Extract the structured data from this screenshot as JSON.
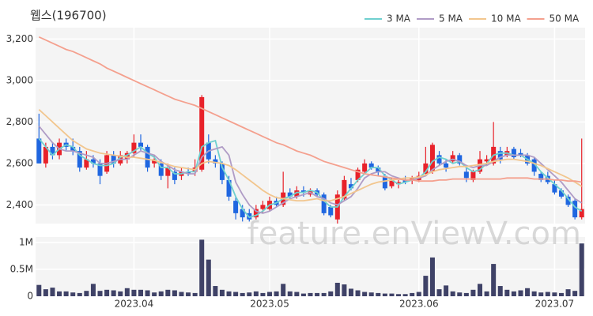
{
  "chart_data": {
    "type": "candlestick",
    "title": "웹스(196700)",
    "watermark": "feature.enViewV.com",
    "legend": "top-right",
    "grid": true,
    "up_color": "#e8222a",
    "down_color": "#1f66e0",
    "xlim": [
      -0.5,
      80.5
    ],
    "xticks": [
      {
        "value": 14,
        "label": "2023.04"
      },
      {
        "value": 34,
        "label": "2023.05"
      },
      {
        "value": 56,
        "label": "2023.06"
      },
      {
        "value": 76,
        "label": "2023.07"
      }
    ],
    "ylim": [
      2310,
      3255
    ],
    "yticks": [
      {
        "value": 2400,
        "label": "2,400"
      },
      {
        "value": 2600,
        "label": "2,600"
      },
      {
        "value": 2800,
        "label": "2,800"
      },
      {
        "value": 3000,
        "label": "3,000"
      },
      {
        "value": 3200,
        "label": "3,200"
      }
    ],
    "ohlc": [
      [
        2720,
        2840,
        2600,
        2600
      ],
      [
        2600,
        2700,
        2580,
        2680
      ],
      [
        2680,
        2700,
        2620,
        2640
      ],
      [
        2640,
        2720,
        2620,
        2700
      ],
      [
        2700,
        2720,
        2660,
        2680
      ],
      [
        2680,
        2720,
        2640,
        2660
      ],
      [
        2660,
        2680,
        2560,
        2580
      ],
      [
        2580,
        2660,
        2570,
        2620
      ],
      [
        2620,
        2640,
        2580,
        2600
      ],
      [
        2600,
        2620,
        2500,
        2540
      ],
      [
        2560,
        2660,
        2550,
        2640
      ],
      [
        2640,
        2660,
        2580,
        2600
      ],
      [
        2600,
        2660,
        2590,
        2640
      ],
      [
        2620,
        2660,
        2600,
        2650
      ],
      [
        2650,
        2740,
        2630,
        2700
      ],
      [
        2700,
        2740,
        2660,
        2680
      ],
      [
        2680,
        2690,
        2560,
        2580
      ],
      [
        2600,
        2640,
        2580,
        2620
      ],
      [
        2600,
        2620,
        2520,
        2540
      ],
      [
        2540,
        2600,
        2480,
        2580
      ],
      [
        2560,
        2580,
        2500,
        2520
      ],
      [
        2540,
        2580,
        2520,
        2560
      ],
      [
        2560,
        2580,
        2540,
        2550
      ],
      [
        2560,
        2620,
        2540,
        2580
      ],
      [
        2570,
        2930,
        2560,
        2920
      ],
      [
        2700,
        2740,
        2600,
        2620
      ],
      [
        2620,
        2640,
        2580,
        2600
      ],
      [
        2600,
        2610,
        2500,
        2520
      ],
      [
        2520,
        2540,
        2420,
        2440
      ],
      [
        2420,
        2440,
        2330,
        2360
      ],
      [
        2380,
        2400,
        2320,
        2340
      ],
      [
        2360,
        2380,
        2320,
        2330
      ],
      [
        2340,
        2400,
        2330,
        2380
      ],
      [
        2380,
        2420,
        2360,
        2400
      ],
      [
        2380,
        2440,
        2370,
        2420
      ],
      [
        2420,
        2440,
        2390,
        2400
      ],
      [
        2400,
        2560,
        2390,
        2460
      ],
      [
        2460,
        2480,
        2430,
        2440
      ],
      [
        2440,
        2490,
        2430,
        2470
      ],
      [
        2470,
        2490,
        2440,
        2460
      ],
      [
        2450,
        2480,
        2440,
        2470
      ],
      [
        2470,
        2480,
        2440,
        2450
      ],
      [
        2450,
        2460,
        2350,
        2360
      ],
      [
        2390,
        2400,
        2340,
        2350
      ],
      [
        2330,
        2470,
        2310,
        2450
      ],
      [
        2430,
        2540,
        2420,
        2520
      ],
      [
        2500,
        2530,
        2470,
        2480
      ],
      [
        2520,
        2580,
        2510,
        2570
      ],
      [
        2560,
        2620,
        2550,
        2600
      ],
      [
        2600,
        2610,
        2570,
        2580
      ],
      [
        2580,
        2590,
        2540,
        2560
      ],
      [
        2540,
        2550,
        2470,
        2480
      ],
      [
        2490,
        2530,
        2480,
        2520
      ],
      [
        2500,
        2520,
        2480,
        2510
      ],
      [
        2520,
        2540,
        2500,
        2510
      ],
      [
        2520,
        2540,
        2500,
        2530
      ],
      [
        2520,
        2560,
        2510,
        2540
      ],
      [
        2550,
        2680,
        2540,
        2600
      ],
      [
        2560,
        2700,
        2550,
        2690
      ],
      [
        2640,
        2660,
        2590,
        2600
      ],
      [
        2600,
        2620,
        2560,
        2580
      ],
      [
        2610,
        2660,
        2600,
        2640
      ],
      [
        2640,
        2650,
        2590,
        2600
      ],
      [
        2560,
        2580,
        2510,
        2530
      ],
      [
        2520,
        2570,
        2510,
        2560
      ],
      [
        2560,
        2660,
        2550,
        2620
      ],
      [
        2610,
        2640,
        2590,
        2620
      ],
      [
        2600,
        2800,
        2590,
        2680
      ],
      [
        2660,
        2680,
        2600,
        2620
      ],
      [
        2640,
        2680,
        2630,
        2660
      ],
      [
        2670,
        2680,
        2620,
        2630
      ],
      [
        2650,
        2670,
        2630,
        2640
      ],
      [
        2640,
        2650,
        2590,
        2600
      ],
      [
        2620,
        2630,
        2540,
        2560
      ],
      [
        2550,
        2560,
        2510,
        2520
      ],
      [
        2540,
        2560,
        2500,
        2510
      ],
      [
        2500,
        2520,
        2450,
        2460
      ],
      [
        2470,
        2480,
        2430,
        2440
      ],
      [
        2440,
        2450,
        2390,
        2400
      ],
      [
        2420,
        2430,
        2330,
        2340
      ],
      [
        2340,
        2720,
        2330,
        2380
      ]
    ],
    "series": [
      {
        "name": "3 MA",
        "color": "#6fd0cf",
        "values": [
          2720,
          2680,
          2640,
          2670,
          2690,
          2680,
          2640,
          2620,
          2600,
          2590,
          2590,
          2600,
          2630,
          2640,
          2660,
          2680,
          2650,
          2630,
          2580,
          2580,
          2550,
          2550,
          2560,
          2560,
          2680,
          2700,
          2710,
          2580,
          2520,
          2440,
          2380,
          2340,
          2350,
          2370,
          2400,
          2410,
          2430,
          2440,
          2460,
          2460,
          2470,
          2460,
          2420,
          2390,
          2390,
          2440,
          2480,
          2520,
          2550,
          2580,
          2580,
          2540,
          2520,
          2500,
          2510,
          2520,
          2530,
          2560,
          2610,
          2630,
          2620,
          2600,
          2610,
          2580,
          2560,
          2570,
          2600,
          2640,
          2650,
          2650,
          2640,
          2640,
          2620,
          2600,
          2560,
          2530,
          2500,
          2470,
          2430,
          2390,
          2370
        ]
      },
      {
        "name": "5 MA",
        "color": "#b09cc6",
        "values": [
          2780,
          2740,
          2700,
          2670,
          2660,
          2660,
          2650,
          2640,
          2630,
          2600,
          2600,
          2610,
          2620,
          2620,
          2640,
          2660,
          2650,
          2640,
          2610,
          2590,
          2570,
          2560,
          2550,
          2550,
          2630,
          2660,
          2670,
          2680,
          2640,
          2510,
          2450,
          2400,
          2370,
          2360,
          2370,
          2390,
          2410,
          2430,
          2440,
          2450,
          2460,
          2440,
          2430,
          2410,
          2400,
          2420,
          2440,
          2480,
          2530,
          2550,
          2560,
          2560,
          2540,
          2530,
          2520,
          2520,
          2530,
          2540,
          2570,
          2590,
          2610,
          2620,
          2610,
          2590,
          2580,
          2590,
          2590,
          2610,
          2630,
          2640,
          2640,
          2640,
          2640,
          2630,
          2600,
          2570,
          2540,
          2510,
          2470,
          2430,
          2410
        ]
      },
      {
        "name": "10 MA",
        "color": "#f2c68e",
        "values": [
          2860,
          2830,
          2800,
          2770,
          2740,
          2710,
          2690,
          2670,
          2660,
          2650,
          2645,
          2640,
          2635,
          2630,
          2630,
          2625,
          2620,
          2615,
          2605,
          2595,
          2585,
          2580,
          2575,
          2570,
          2600,
          2610,
          2605,
          2600,
          2590,
          2570,
          2545,
          2520,
          2495,
          2470,
          2450,
          2435,
          2430,
          2425,
          2420,
          2420,
          2425,
          2430,
          2420,
          2420,
          2430,
          2440,
          2455,
          2470,
          2485,
          2500,
          2510,
          2515,
          2520,
          2525,
          2530,
          2530,
          2535,
          2545,
          2560,
          2570,
          2575,
          2580,
          2585,
          2585,
          2590,
          2595,
          2600,
          2610,
          2615,
          2620,
          2620,
          2615,
          2610,
          2600,
          2590,
          2575,
          2560,
          2545,
          2530,
          2510,
          2490
        ]
      },
      {
        "name": "50 MA",
        "color": "#f4a08e",
        "values": [
          3210,
          3195,
          3180,
          3165,
          3150,
          3140,
          3125,
          3110,
          3095,
          3080,
          3060,
          3045,
          3030,
          3015,
          3000,
          2985,
          2970,
          2955,
          2940,
          2925,
          2910,
          2900,
          2890,
          2880,
          2865,
          2850,
          2835,
          2820,
          2805,
          2790,
          2775,
          2760,
          2745,
          2730,
          2715,
          2700,
          2690,
          2675,
          2660,
          2650,
          2640,
          2625,
          2610,
          2600,
          2590,
          2580,
          2570,
          2560,
          2550,
          2545,
          2540,
          2535,
          2530,
          2525,
          2520,
          2520,
          2515,
          2515,
          2515,
          2520,
          2520,
          2525,
          2525,
          2525,
          2525,
          2525,
          2525,
          2525,
          2525,
          2530,
          2530,
          2530,
          2530,
          2525,
          2525,
          2525,
          2520,
          2520,
          2515,
          2515,
          2510
        ]
      }
    ],
    "volume": {
      "color": "#3f4267",
      "ylim": [
        0,
        1100000
      ],
      "yticks": [
        0,
        {
          "value": 500000,
          "label": "0.5M"
        },
        {
          "value": 1000000,
          "label": "1M"
        }
      ],
      "values": [
        210000,
        130000,
        160000,
        90000,
        90000,
        70000,
        60000,
        100000,
        230000,
        100000,
        120000,
        110000,
        90000,
        150000,
        120000,
        120000,
        110000,
        70000,
        90000,
        120000,
        110000,
        80000,
        70000,
        60000,
        1050000,
        680000,
        190000,
        120000,
        90000,
        80000,
        60000,
        70000,
        90000,
        60000,
        80000,
        90000,
        230000,
        90000,
        80000,
        50000,
        60000,
        60000,
        60000,
        90000,
        250000,
        220000,
        140000,
        110000,
        80000,
        70000,
        60000,
        50000,
        50000,
        40000,
        40000,
        60000,
        80000,
        380000,
        720000,
        130000,
        200000,
        90000,
        70000,
        60000,
        120000,
        230000,
        90000,
        600000,
        190000,
        120000,
        90000,
        110000,
        150000,
        90000,
        70000,
        80000,
        70000,
        60000,
        130000,
        100000,
        980000
      ]
    }
  }
}
